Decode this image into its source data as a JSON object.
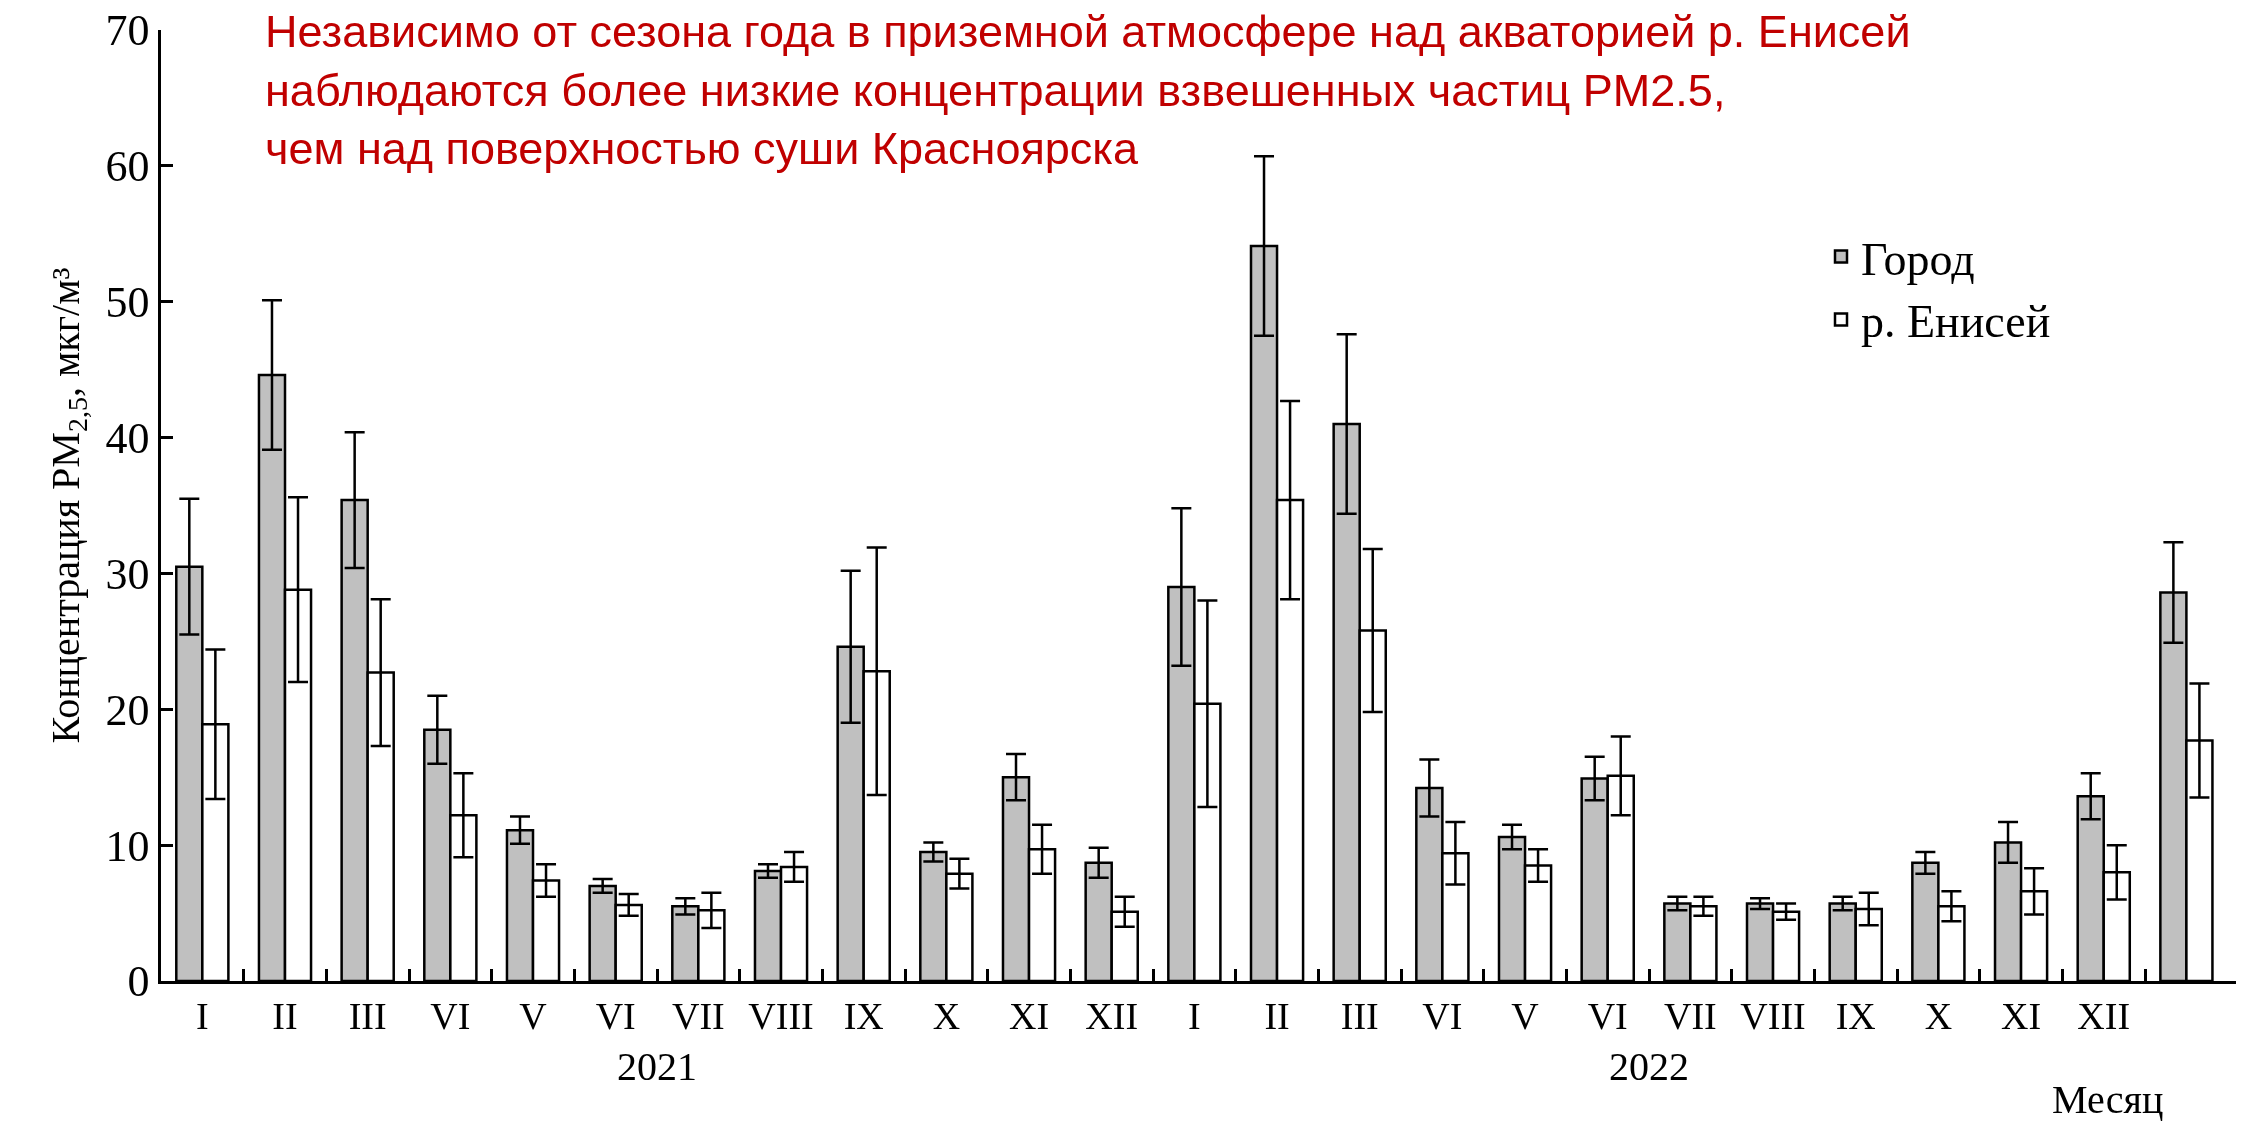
{
  "chart_data": {
    "type": "bar",
    "title": "Независимо от сезона года в приземной атмосфере над акваторией р. Енисей\nнаблюдаются более низкие концентрации взвешенных частиц PM2.5,\nчем над поверхностью суши Красноярска",
    "xlabel": "Месяц",
    "ylabel": "Концентрация PM$_{2,5}$, мкг/м³",
    "annotations": [
      "2021",
      "2022"
    ],
    "categories": [
      "I",
      "II",
      "III",
      "VI",
      "V",
      "VI",
      "VII",
      "VIII",
      "IX",
      "X",
      "XI",
      "XII",
      "I",
      "II",
      "III",
      "VI",
      "V",
      "VI",
      "VII",
      "VIII",
      "IX",
      "X",
      "XI",
      "XII",
      null
    ],
    "series": [
      {
        "name": "Город",
        "color": "#c0c0c0",
        "values": [
          30.5,
          44.6,
          35.4,
          18.5,
          11.1,
          7.0,
          5.5,
          8.1,
          24.6,
          9.5,
          15.0,
          8.7,
          29.0,
          54.1,
          41.0,
          14.2,
          10.6,
          14.9,
          5.7,
          5.7,
          5.7,
          8.7,
          10.2,
          13.6,
          28.6
        ],
        "errors": [
          5.0,
          5.5,
          5.0,
          2.5,
          1.0,
          0.5,
          0.6,
          0.5,
          5.6,
          0.7,
          1.7,
          1.1,
          5.8,
          6.6,
          6.6,
          2.1,
          0.9,
          1.6,
          0.5,
          0.4,
          0.5,
          0.8,
          1.5,
          1.7,
          3.7
        ]
      },
      {
        "name": "р. Енисей",
        "color": "#ffffff",
        "values": [
          18.9,
          28.8,
          22.7,
          12.2,
          7.4,
          5.6,
          5.2,
          8.4,
          22.8,
          7.9,
          9.7,
          5.1,
          20.4,
          35.4,
          25.8,
          9.4,
          8.5,
          15.1,
          5.5,
          5.1,
          5.3,
          5.5,
          6.6,
          8.0,
          17.7
        ],
        "errors": [
          5.5,
          6.8,
          5.4,
          3.1,
          1.2,
          0.8,
          1.3,
          1.1,
          9.1,
          1.1,
          1.8,
          1.1,
          7.6,
          7.3,
          6.0,
          2.3,
          1.2,
          2.9,
          0.7,
          0.6,
          1.2,
          1.1,
          1.7,
          2.0,
          4.2
        ]
      }
    ],
    "ylim": [
      0,
      70
    ],
    "yticks": [
      0,
      10,
      20,
      30,
      40,
      50,
      60,
      70
    ],
    "legend": "top right"
  }
}
